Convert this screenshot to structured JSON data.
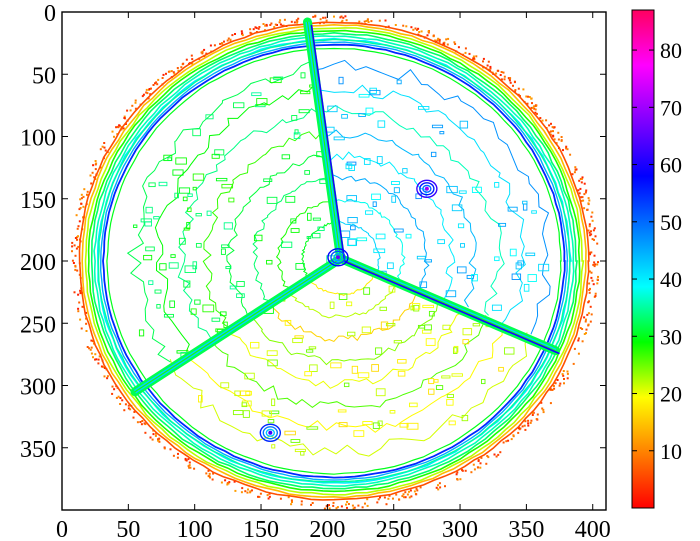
{
  "chart_data": {
    "type": "heatmap",
    "title": "",
    "xlabel": "",
    "ylabel": "",
    "x_range": [
      0,
      410
    ],
    "y_range": [
      0,
      400
    ],
    "y_axis_inverted": true,
    "x_ticks": [
      0,
      50,
      100,
      150,
      200,
      250,
      300,
      350,
      400
    ],
    "y_ticks": [
      0,
      50,
      100,
      150,
      200,
      250,
      300,
      350
    ],
    "colorbar": {
      "range": [
        0,
        87
      ],
      "ticks": [
        10,
        20,
        30,
        40,
        50,
        60,
        70,
        80
      ],
      "colormap": [
        "#ff0000",
        "#ff8000",
        "#ffff00",
        "#00ff00",
        "#00ffff",
        "#0080ff",
        "#0000ff",
        "#8000ff",
        "#ff00ff",
        "#ff0060"
      ]
    },
    "grid": false,
    "features": {
      "disk_center": [
        205,
        200
      ],
      "disk_radius": 192,
      "hub": [
        210,
        198
      ],
      "spoke_ends": [
        [
          185,
          8
        ],
        [
          372,
          272
        ],
        [
          55,
          305
        ]
      ],
      "outer_rim_value": 35,
      "inner_rim_value": 45,
      "spoke_value": 38,
      "hotspots": [
        {
          "x": 275,
          "y": 142,
          "value": 62
        },
        {
          "x": 157,
          "y": 338,
          "value": 55
        },
        {
          "x": 208,
          "y": 197,
          "value": 58
        }
      ]
    }
  }
}
